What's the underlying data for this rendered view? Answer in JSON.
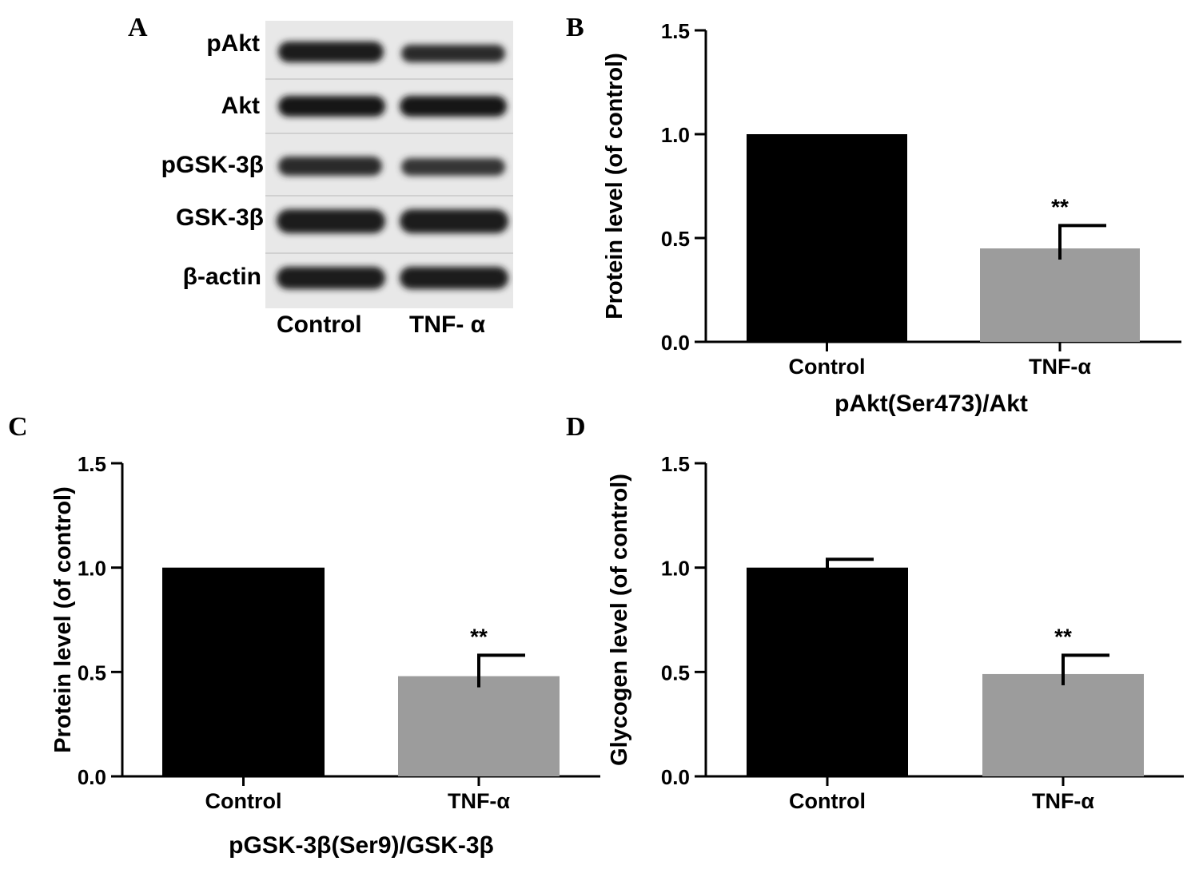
{
  "panels": {
    "A": "A",
    "B": "B",
    "C": "C",
    "D": "D"
  },
  "blot": {
    "rows": [
      "pAkt",
      "Akt",
      "pGSK-3β",
      "GSK-3β",
      "β-actin"
    ],
    "conditions": [
      "Control",
      "TNF- α"
    ]
  },
  "colors": {
    "control_bar": "#000000",
    "treatment_bar": "#9c9c9c",
    "blot_background": "#e8e8e8",
    "band": "#1a1a1a"
  },
  "chart_data": [
    {
      "type": "bar",
      "panel": "B",
      "categories": [
        "Control",
        "TNF-α"
      ],
      "values": [
        1.0,
        0.45
      ],
      "errors": [
        0,
        0.11
      ],
      "significance": [
        "",
        "**"
      ],
      "xlabel": "pAkt(Ser473)/Akt",
      "ylabel": "Protein level (of control)",
      "ylim": [
        0,
        1.5
      ],
      "yticks": [
        "0.0",
        "0.5",
        "1.0",
        "1.5"
      ]
    },
    {
      "type": "bar",
      "panel": "C",
      "categories": [
        "Control",
        "TNF-α"
      ],
      "values": [
        1.0,
        0.48
      ],
      "errors": [
        0,
        0.1
      ],
      "significance": [
        "",
        "**"
      ],
      "xlabel": "pGSK-3β(Ser9)/GSK-3β",
      "ylabel": "Protein level (of control)",
      "ylim": [
        0,
        1.5
      ],
      "yticks": [
        "0.0",
        "0.5",
        "1.0",
        "1.5"
      ]
    },
    {
      "type": "bar",
      "panel": "D",
      "categories": [
        "Control",
        "TNF-α"
      ],
      "values": [
        1.0,
        0.49
      ],
      "errors": [
        0.04,
        0.09
      ],
      "significance": [
        "",
        "**"
      ],
      "xlabel": "",
      "ylabel": "Glycogen level (of control)",
      "ylim": [
        0,
        1.5
      ],
      "yticks": [
        "0.0",
        "0.5",
        "1.0",
        "1.5"
      ]
    }
  ]
}
